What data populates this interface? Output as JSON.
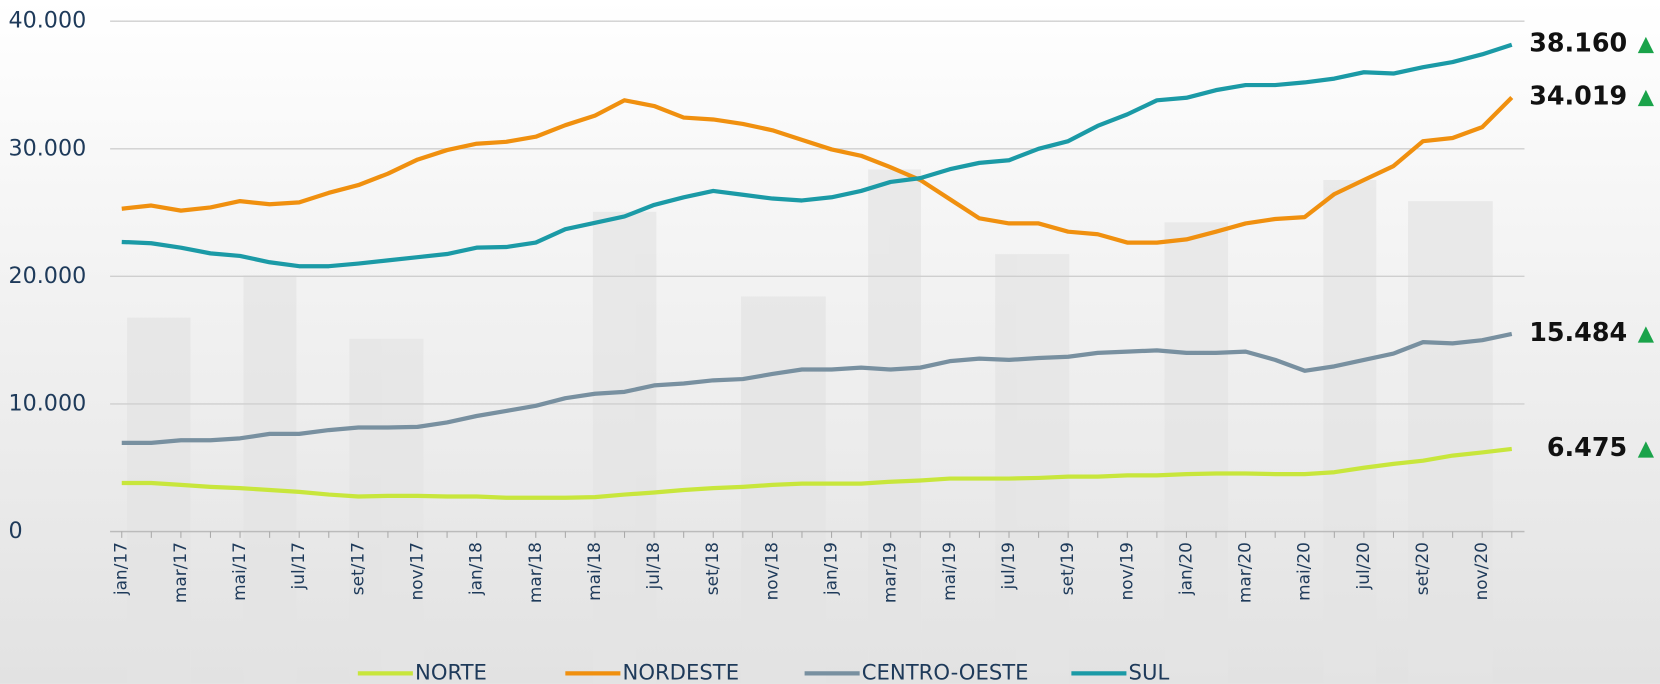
{
  "chart_data": {
    "type": "line",
    "categories": [
      "jan/17",
      null,
      "mar/17",
      null,
      "mai/17",
      null,
      "jul/17",
      null,
      "set/17",
      null,
      "nov/17",
      null,
      "jan/18",
      null,
      "mar/18",
      null,
      "mai/18",
      null,
      "jul/18",
      null,
      "set/18",
      null,
      "nov/18",
      null,
      "jan/19",
      null,
      "mar/19",
      null,
      "mai/19",
      null,
      "jul/19",
      null,
      "set/19",
      null,
      "nov/19",
      null,
      "jan/20",
      null,
      "mar/20",
      null,
      "mai/20",
      null,
      "jul/20",
      null,
      "set/20",
      null,
      "nov/20",
      null
    ],
    "ylim": [
      0,
      40000
    ],
    "yticks": [
      {
        "value": 0,
        "label": "0"
      },
      {
        "value": 10000,
        "label": "10.000"
      },
      {
        "value": 20000,
        "label": "20.000"
      },
      {
        "value": 30000,
        "label": "30.000"
      },
      {
        "value": 40000,
        "label": "40.000"
      }
    ],
    "grid": true,
    "legend": "bottom",
    "series": [
      {
        "name": "NORTE",
        "color": "#c8e63c",
        "trend": "▲",
        "value_labels": [
          null,
          null,
          null,
          null,
          null,
          null,
          null,
          null,
          null,
          null,
          null,
          null,
          null,
          null,
          null,
          null,
          null,
          null,
          null,
          null,
          null,
          null,
          null,
          null,
          null,
          null,
          null,
          null,
          null,
          null,
          null,
          null,
          null,
          null,
          null,
          null,
          null,
          null,
          null,
          null,
          null,
          null,
          null,
          null,
          null,
          null,
          null,
          "6.475"
        ],
        "values": [
          3800,
          3800,
          3650,
          3500,
          3400,
          3250,
          3100,
          2900,
          2750,
          2800,
          2800,
          2750,
          2750,
          2650,
          2650,
          2650,
          2700,
          2900,
          3050,
          3250,
          3400,
          3500,
          3650,
          3750,
          3750,
          3750,
          3900,
          4000,
          4150,
          4150,
          4150,
          4200,
          4300,
          4300,
          4400,
          4400,
          4500,
          4550,
          4550,
          4500,
          4500,
          4650,
          5000,
          5300,
          5550,
          5950,
          6200,
          6475
        ]
      },
      {
        "name": "NORDESTE",
        "color": "#f0900f",
        "trend": "▲",
        "value_labels": [
          null,
          null,
          null,
          null,
          null,
          null,
          null,
          null,
          null,
          null,
          null,
          null,
          null,
          null,
          null,
          null,
          null,
          null,
          null,
          null,
          null,
          null,
          null,
          null,
          null,
          null,
          null,
          null,
          null,
          null,
          null,
          null,
          null,
          null,
          null,
          null,
          null,
          null,
          null,
          null,
          null,
          null,
          null,
          null,
          null,
          null,
          null,
          "34.019"
        ],
        "values": [
          25300,
          25550,
          25150,
          25400,
          25900,
          25650,
          25800,
          26550,
          27150,
          28050,
          29150,
          29900,
          30400,
          30550,
          30950,
          31850,
          32600,
          33800,
          33350,
          32450,
          32300,
          31950,
          31450,
          30700,
          29950,
          29450,
          28550,
          27550,
          26050,
          24550,
          24150,
          24150,
          23500,
          23300,
          22650,
          22650,
          22900,
          23500,
          24150,
          24500,
          24650,
          26450,
          27550,
          28650,
          30600,
          30850,
          31700,
          34019
        ]
      },
      {
        "name": "CENTRO-OESTE",
        "color": "#7890a0",
        "trend": "▲",
        "value_labels": [
          null,
          null,
          null,
          null,
          null,
          null,
          null,
          null,
          null,
          null,
          null,
          null,
          null,
          null,
          null,
          null,
          null,
          null,
          null,
          null,
          null,
          null,
          null,
          null,
          null,
          null,
          null,
          null,
          null,
          null,
          null,
          null,
          null,
          null,
          null,
          null,
          null,
          null,
          null,
          null,
          null,
          null,
          null,
          null,
          null,
          null,
          null,
          "15.484"
        ],
        "values": [
          6950,
          6950,
          7150,
          7150,
          7300,
          7650,
          7650,
          7950,
          8150,
          8150,
          8200,
          8550,
          9050,
          9450,
          9850,
          10450,
          10800,
          10950,
          11450,
          11600,
          11850,
          11950,
          12350,
          12700,
          12700,
          12850,
          12700,
          12850,
          13350,
          13550,
          13450,
          13600,
          13700,
          14000,
          14100,
          14200,
          14000,
          14000,
          14100,
          13450,
          12600,
          12950,
          13450,
          13950,
          14850,
          14750,
          15000,
          15484
        ]
      },
      {
        "name": "SUL",
        "color": "#1b9aa6",
        "trend": "▲",
        "value_labels": [
          null,
          null,
          null,
          null,
          null,
          null,
          null,
          null,
          null,
          null,
          null,
          null,
          null,
          null,
          null,
          null,
          null,
          null,
          null,
          null,
          null,
          null,
          null,
          null,
          null,
          null,
          null,
          null,
          null,
          null,
          null,
          null,
          null,
          null,
          null,
          null,
          null,
          null,
          null,
          null,
          null,
          null,
          null,
          null,
          null,
          null,
          null,
          "38.160"
        ],
        "values": [
          22700,
          22600,
          22250,
          21800,
          21600,
          21100,
          20800,
          20800,
          21000,
          21250,
          21500,
          21750,
          22250,
          22300,
          22650,
          23700,
          24200,
          24700,
          25600,
          26200,
          26700,
          26400,
          26100,
          25950,
          26200,
          26700,
          27400,
          27700,
          28400,
          28900,
          29100,
          30000,
          30600,
          31800,
          32700,
          33800,
          34000,
          34600,
          35000,
          35000,
          35200,
          35500,
          36000,
          35900,
          36400,
          36800,
          37400,
          38160
        ]
      }
    ]
  }
}
